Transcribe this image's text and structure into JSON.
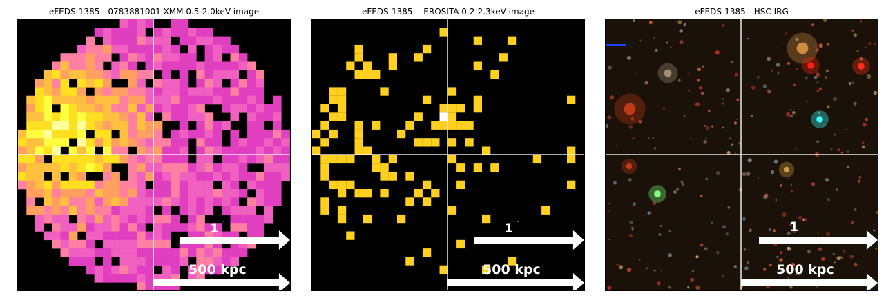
{
  "panels": [
    {
      "id": "xmm",
      "title": "eFEDS-1385 - 0783881001 XMM 0.5-2.0keV image",
      "arc_label": "1",
      "arc_unit": "′",
      "kpc_label": "500 kpc"
    },
    {
      "id": "erosita",
      "title": "eFEDS-1385 -  EROSITA 0.2-2.3keV image",
      "arc_label": "1",
      "arc_unit": "′",
      "kpc_label": "500 kpc"
    },
    {
      "id": "hsc",
      "title": "eFEDS-1385 - HSC IRG",
      "arc_label": "1",
      "arc_unit": "′",
      "kpc_label": "500 kpc"
    }
  ],
  "colors": {
    "background": "#000000",
    "crosshair": "#ffffff",
    "arrow": "#ffffff",
    "xmm_palette": [
      "#e040c0",
      "#f060c0",
      "#ff80a0",
      "#ffa060",
      "#ffc040",
      "#ffe020",
      "#ffff40",
      "#ffffa0"
    ],
    "erosita_pixel": "#ffd020",
    "erosita_peak": "#ffffff",
    "sky_background": "#1a1208"
  },
  "icons": [
    "right-arrow-icon"
  ]
}
